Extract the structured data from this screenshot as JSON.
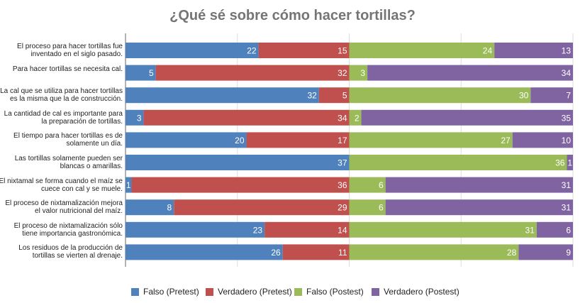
{
  "chart_data": {
    "type": "bar",
    "orientation": "horizontal",
    "stacked": true,
    "title": "¿Qué sé sobre cómo hacer tortillas?",
    "categories": [
      "El proceso para hacer tortillas fue inventado en el siglo pasado.",
      "Para hacer tortillas se necesita cal.",
      "La cal que se utiliza para hacer tortillas es la misma que la de construcción.",
      "La cantidad de cal es importante para la preparación de tortillas.",
      "El tiempo para hacer tortillas es de solamente un día.",
      "Las tortillas solamente pueden ser blancas o amarillas.",
      "El nixtamal se forma cuando el maíz se cuece con cal y se muele.",
      "El proceso de nixtamalización mejora el valor nutricional del maíz.",
      "El proceso de nixtamalización sólo tiene importancia gastronómica.",
      "Los residuos de la producción de tortillas se vierten al drenaje."
    ],
    "series": [
      {
        "name": "Falso (Pretest)",
        "color": "#4f81bd",
        "values": [
          22,
          5,
          32,
          3,
          20,
          37,
          1,
          8,
          23,
          26
        ]
      },
      {
        "name": "Verdadero (Pretest)",
        "color": "#c0504d",
        "values": [
          15,
          32,
          5,
          34,
          17,
          0,
          36,
          29,
          14,
          11
        ]
      },
      {
        "name": "Falso (Postest)",
        "color": "#9bbb59",
        "values": [
          24,
          3,
          30,
          2,
          27,
          36,
          6,
          6,
          31,
          28
        ]
      },
      {
        "name": "Verdadero (Postest)",
        "color": "#8064a2",
        "values": [
          13,
          34,
          7,
          35,
          10,
          1,
          31,
          31,
          6,
          9
        ]
      }
    ],
    "xlim": [
      0,
      74
    ],
    "grid": true,
    "legend": "bottom"
  }
}
